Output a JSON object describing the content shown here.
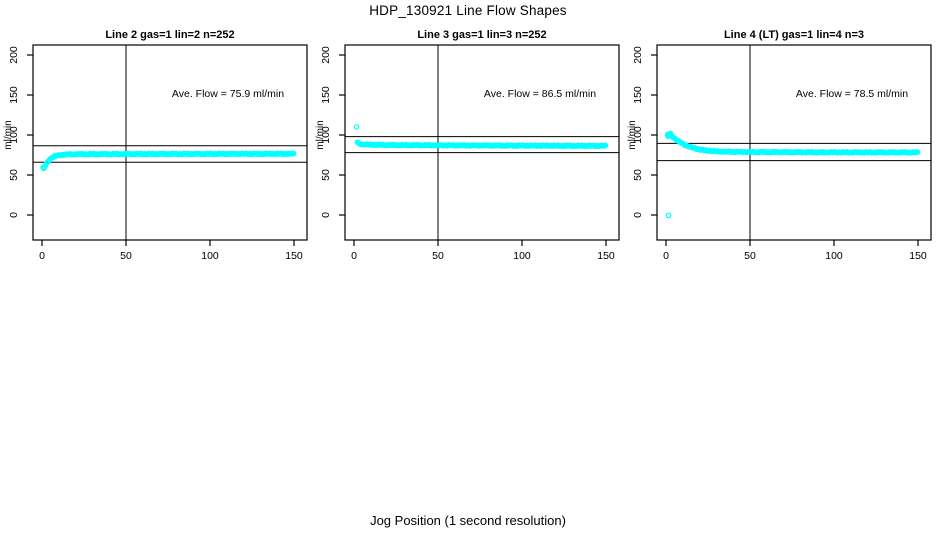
{
  "page": {
    "title": "HDP_130921  Line Flow Shapes",
    "xlabel": "Jog Position (1 second resolution)",
    "ylabel": "ml/min",
    "point_color": "#00FFFF",
    "axis_color": "#000000",
    "background": "#FFFFFF"
  },
  "chart_data": [
    {
      "type": "scatter",
      "title": "Line 2 gas=1 lin=2 n=252",
      "annotation": "Ave. Flow =  75.9  ml/min",
      "ave_flow": 75.9,
      "xticks": [
        0,
        50,
        100,
        150
      ],
      "yticks": [
        0,
        50,
        100,
        150,
        200
      ],
      "xlim": [
        -5,
        158
      ],
      "ylim": [
        -31,
        213
      ],
      "grid": false,
      "vline_x": 50,
      "hlines": [
        86.5,
        66
      ],
      "series_keypoints": [
        [
          1.0,
          58
        ],
        [
          2.0,
          61.5
        ],
        [
          2.8,
          64.5
        ],
        [
          3.6,
          67
        ],
        [
          4.5,
          69.3
        ],
        [
          5.5,
          71
        ],
        [
          6.5,
          72.3
        ],
        [
          8,
          73.6
        ],
        [
          10,
          74.6
        ],
        [
          12,
          75.2
        ],
        [
          15,
          75.7
        ],
        [
          20,
          76.0
        ],
        [
          30,
          76.1
        ],
        [
          50,
          76.2
        ],
        [
          80,
          76.3
        ],
        [
          110,
          76.4
        ],
        [
          150,
          76.5
        ]
      ],
      "extra_points": [
        [
          0.6,
          59.6
        ]
      ],
      "outliers": []
    },
    {
      "type": "scatter",
      "title": "Line 3 gas=1 lin=3 n=252",
      "annotation": "Ave. Flow =  86.5  ml/min",
      "ave_flow": 86.5,
      "xticks": [
        0,
        50,
        100,
        150
      ],
      "yticks": [
        0,
        50,
        100,
        150,
        200
      ],
      "xlim": [
        -5,
        158
      ],
      "ylim": [
        -31,
        213
      ],
      "grid": false,
      "vline_x": 50,
      "hlines": [
        98,
        78
      ],
      "series_keypoints": [
        [
          2,
          91
        ],
        [
          2.6,
          89.8
        ],
        [
          3.5,
          89
        ],
        [
          5,
          88.4
        ],
        [
          8,
          88
        ],
        [
          15,
          87.6
        ],
        [
          30,
          87.3
        ],
        [
          60,
          87
        ],
        [
          100,
          86.7
        ],
        [
          130,
          86.5
        ],
        [
          150,
          86.4
        ]
      ],
      "extra_points": [],
      "outliers": [
        [
          1.5,
          110
        ]
      ]
    },
    {
      "type": "scatter",
      "title": "Line 4 (LT) gas=1 lin=4 n=3",
      "annotation": "Ave. Flow =  78.5  ml/min",
      "ave_flow": 78.5,
      "xticks": [
        0,
        50,
        100,
        150
      ],
      "yticks": [
        0,
        50,
        100,
        150,
        200
      ],
      "xlim": [
        -5,
        158
      ],
      "ylim": [
        -31,
        213
      ],
      "grid": false,
      "vline_x": 50,
      "hlines": [
        89.5,
        68
      ],
      "series_keypoints": [
        [
          1,
          100
        ],
        [
          2,
          101.5
        ],
        [
          3,
          99.5
        ],
        [
          4,
          97.8
        ],
        [
          5,
          96
        ],
        [
          6,
          94.3
        ],
        [
          7,
          92.8
        ],
        [
          8,
          91.4
        ],
        [
          9,
          90.2
        ],
        [
          10,
          89
        ],
        [
          12,
          87
        ],
        [
          14,
          85.4
        ],
        [
          16,
          84
        ],
        [
          18,
          82.9
        ],
        [
          20,
          81.9
        ],
        [
          23,
          80.9
        ],
        [
          26,
          80.2
        ],
        [
          30,
          79.6
        ],
        [
          36,
          79.1
        ],
        [
          45,
          78.8
        ],
        [
          60,
          78.6
        ],
        [
          90,
          78.4
        ],
        [
          120,
          78.3
        ],
        [
          150,
          78.2
        ]
      ],
      "extra_points": [
        [
          1.2,
          98.5
        ],
        [
          1.6,
          99.8
        ],
        [
          2.2,
          100.6
        ],
        [
          2.6,
          102
        ],
        [
          1.4,
          101
        ],
        [
          3.4,
          98.6
        ]
      ],
      "outliers": [
        [
          1.5,
          -0.5
        ]
      ]
    }
  ]
}
